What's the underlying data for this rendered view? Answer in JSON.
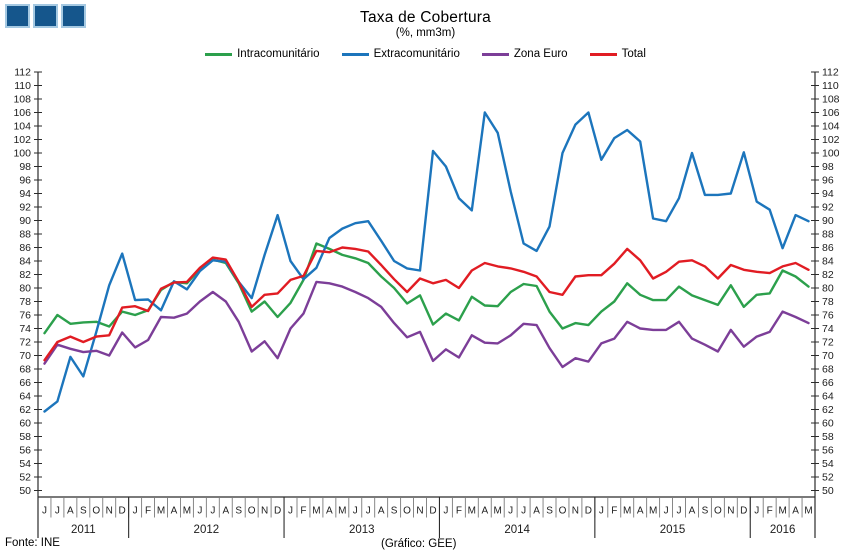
{
  "header": {
    "title": "Taxa de Cobertura",
    "subtitle": "(%, mm3m)"
  },
  "logo": {
    "square_color": "#15568C",
    "square_border_color": "#A5C9E2",
    "square_count": 3
  },
  "legend": [
    {
      "label": "Intracomunitário",
      "color": "#2CA04C"
    },
    {
      "label": "Extracomunitário",
      "color": "#1C75BC"
    },
    {
      "label": "Zona Euro",
      "color": "#7C3E98"
    },
    {
      "label": "Total",
      "color": "#E11C23"
    }
  ],
  "footer": {
    "source": "Fonte: INE",
    "credit": "(Gráfico: GEE)"
  },
  "chart_data": {
    "type": "line",
    "title": "Taxa de Cobertura",
    "subtitle": "(%, mm3m)",
    "ylim": [
      50,
      112
    ],
    "ytick_step": 2,
    "grid": false,
    "legend_position": "top",
    "y_axis_sides": [
      "left",
      "right"
    ],
    "x_month_labels": [
      "J",
      "J",
      "A",
      "S",
      "O",
      "N",
      "D",
      "J",
      "F",
      "M",
      "A",
      "M",
      "J",
      "J",
      "A",
      "S",
      "O",
      "N",
      "D",
      "J",
      "F",
      "M",
      "A",
      "M",
      "J",
      "J",
      "A",
      "S",
      "O",
      "N",
      "D",
      "J",
      "F",
      "M",
      "A",
      "M",
      "J",
      "J",
      "A",
      "S",
      "O",
      "N",
      "D",
      "J",
      "F",
      "M",
      "A",
      "M",
      "J",
      "J",
      "A",
      "S",
      "O",
      "N",
      "D",
      "J",
      "F",
      "M",
      "A",
      "M"
    ],
    "year_groups": [
      {
        "label": "2011",
        "months": 7
      },
      {
        "label": "2012",
        "months": 12
      },
      {
        "label": "2013",
        "months": 12
      },
      {
        "label": "2014",
        "months": 12
      },
      {
        "label": "2015",
        "months": 12
      },
      {
        "label": "2016",
        "months": 5
      }
    ],
    "series": [
      {
        "name": "Intracomunitário",
        "color": "#2CA04C",
        "values": [
          73.3,
          76.0,
          74.7,
          74.9,
          75.0,
          74.3,
          76.5,
          76.0,
          76.7,
          79.7,
          80.9,
          80.7,
          82.8,
          84.2,
          83.7,
          80.7,
          76.5,
          78.0,
          75.7,
          77.8,
          81.2,
          86.6,
          85.8,
          84.9,
          84.4,
          83.7,
          81.7,
          80.0,
          77.7,
          78.9,
          74.6,
          76.2,
          75.2,
          78.7,
          77.4,
          77.3,
          79.4,
          80.6,
          80.3,
          76.5,
          74.0,
          74.8,
          74.5,
          76.5,
          78.0,
          80.7,
          79.0,
          78.2,
          78.2,
          80.2,
          78.9,
          78.2,
          77.5,
          80.4,
          77.2,
          79.0,
          79.2,
          82.6,
          81.7,
          80.2
        ]
      },
      {
        "name": "Extracomunitário",
        "color": "#1C75BC",
        "values": [
          61.7,
          63.2,
          69.8,
          66.9,
          73.5,
          80.4,
          85.1,
          78.2,
          78.3,
          76.7,
          81.0,
          79.8,
          82.5,
          84.1,
          83.9,
          80.9,
          78.5,
          84.9,
          90.8,
          84.0,
          81.3,
          83.0,
          87.4,
          88.8,
          89.6,
          89.9,
          87.0,
          84.0,
          82.9,
          82.6,
          100.3,
          98.0,
          93.3,
          91.5,
          106.0,
          103.0,
          94.3,
          86.6,
          85.5,
          89.1,
          100.0,
          104.2,
          106.0,
          99.0,
          102.2,
          103.4,
          101.7,
          90.3,
          89.9,
          93.3,
          100.0,
          93.8,
          93.8,
          94.0,
          100.1,
          92.8,
          91.6,
          85.9,
          90.8,
          89.9
        ]
      },
      {
        "name": "Zona Euro",
        "color": "#7C3E98",
        "values": [
          68.8,
          71.6,
          71.0,
          70.5,
          70.7,
          70.0,
          73.4,
          71.2,
          72.3,
          75.7,
          75.6,
          76.2,
          78.0,
          79.4,
          78.0,
          75.0,
          70.6,
          72.1,
          69.6,
          74.0,
          76.2,
          80.9,
          80.7,
          80.2,
          79.4,
          78.5,
          77.2,
          74.8,
          72.7,
          73.5,
          69.2,
          70.9,
          69.7,
          73.0,
          71.9,
          71.8,
          73.0,
          74.7,
          74.5,
          71.1,
          68.3,
          69.6,
          69.1,
          71.8,
          72.5,
          75.0,
          74.0,
          73.8,
          73.8,
          75.0,
          72.5,
          71.6,
          70.6,
          73.8,
          71.3,
          72.8,
          73.5,
          76.5,
          75.7,
          74.8
        ]
      },
      {
        "name": "Total",
        "color": "#E11C23",
        "values": [
          69.3,
          72.0,
          72.8,
          72.0,
          72.8,
          73.0,
          77.1,
          77.3,
          76.6,
          79.9,
          80.8,
          80.9,
          83.0,
          84.5,
          84.2,
          80.9,
          77.2,
          79.0,
          79.2,
          81.2,
          81.8,
          85.5,
          85.3,
          86.0,
          85.8,
          85.4,
          83.4,
          81.3,
          79.4,
          81.4,
          80.7,
          81.2,
          80.0,
          82.6,
          83.7,
          83.2,
          82.9,
          82.4,
          81.7,
          79.4,
          79.0,
          81.7,
          81.9,
          81.9,
          83.6,
          85.8,
          84.1,
          81.4,
          82.4,
          83.9,
          84.1,
          83.2,
          81.4,
          83.4,
          82.7,
          82.4,
          82.2,
          83.2,
          83.7,
          82.7
        ]
      }
    ]
  }
}
